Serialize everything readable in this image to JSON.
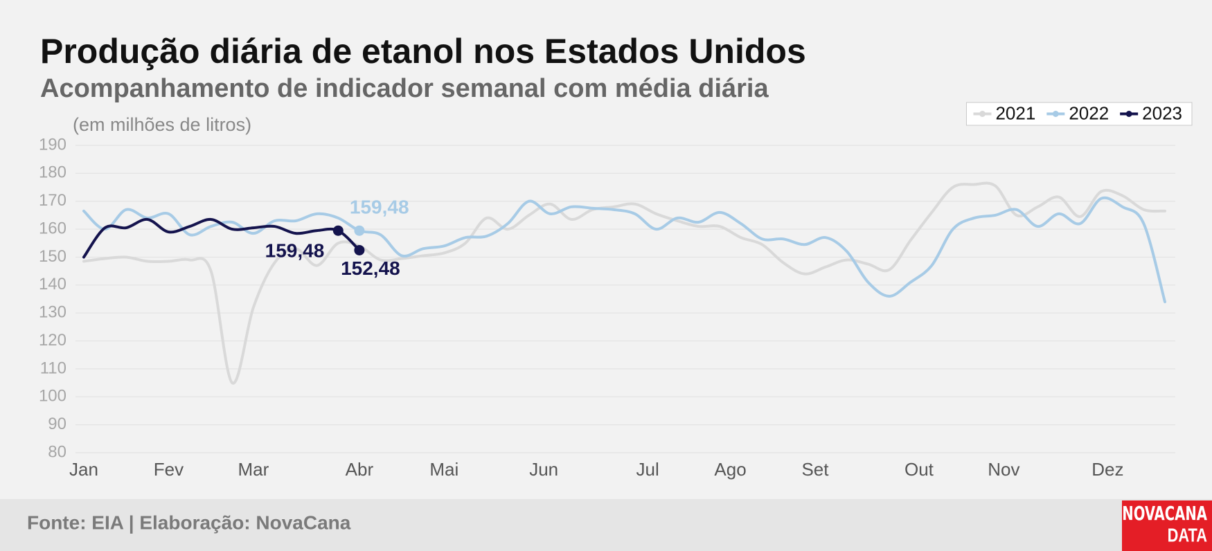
{
  "chart_data": {
    "type": "line",
    "title": "Produção diária de etanol nos Estados Unidos",
    "subtitle": "Acompanhamento de indicador semanal com média diária",
    "y_label": "(em milhões de litros)",
    "source": "Fonte: EIA | Elaboração: NovaCana",
    "logo": [
      "NOVACANA",
      "DATA"
    ],
    "x": [
      1,
      2,
      3,
      4,
      5,
      6,
      7,
      8,
      9,
      10,
      11,
      12,
      13,
      14,
      15,
      16,
      17,
      18,
      19,
      20,
      21,
      22,
      23,
      24,
      25,
      26,
      27,
      28,
      29,
      30,
      31,
      32,
      33,
      34,
      35,
      36,
      37,
      38,
      39,
      40,
      41,
      42,
      43,
      44,
      45,
      46,
      47,
      48,
      49,
      50,
      51,
      52
    ],
    "xlim": [
      1,
      52
    ],
    "xticks": [
      {
        "value": 1,
        "label": "Jan"
      },
      {
        "value": 5,
        "label": "Fev"
      },
      {
        "value": 9,
        "label": "Mar"
      },
      {
        "value": 14,
        "label": "Abr"
      },
      {
        "value": 18,
        "label": "Mai"
      },
      {
        "value": 22.7,
        "label": "Jun"
      },
      {
        "value": 27.6,
        "label": "Jul"
      },
      {
        "value": 31.5,
        "label": "Ago"
      },
      {
        "value": 35.5,
        "label": "Set"
      },
      {
        "value": 40.4,
        "label": "Out"
      },
      {
        "value": 44.4,
        "label": "Nov"
      },
      {
        "value": 49.3,
        "label": "Dez"
      }
    ],
    "ylim": [
      80,
      190
    ],
    "yticks": [
      80,
      90,
      100,
      110,
      120,
      130,
      140,
      150,
      160,
      170,
      180,
      190
    ],
    "grid": true,
    "legend": "top-right",
    "series": [
      {
        "name": "2021",
        "color": "#d9d9d9",
        "values": [
          148.5,
          149.5,
          150,
          148.5,
          148.5,
          149,
          145,
          105,
          132,
          148,
          153,
          147,
          155,
          154,
          149,
          149.5,
          150.5,
          151.5,
          155,
          164,
          160,
          165,
          169,
          163.5,
          167,
          168,
          169,
          165.5,
          163,
          161,
          161,
          157,
          154.5,
          148,
          144,
          146.5,
          149,
          147.5,
          145.5,
          156,
          166,
          175,
          176,
          175.5,
          165,
          168,
          171.5,
          164.5,
          173.5,
          172,
          167,
          166.5
        ]
      },
      {
        "name": "2022",
        "color": "#a7cbe6",
        "values": [
          166.5,
          160,
          167,
          164,
          165.5,
          158,
          161,
          162.5,
          158.5,
          163,
          163,
          165.5,
          164,
          159.48,
          158,
          150.5,
          153,
          154,
          157,
          157.5,
          162,
          170,
          165.5,
          168,
          167.5,
          167,
          165.5,
          160,
          164,
          162.5,
          166,
          162,
          156.5,
          156.5,
          154.5,
          157,
          152,
          141,
          136,
          141,
          147,
          160,
          164,
          165,
          167,
          161,
          165.5,
          162,
          171,
          168,
          162,
          134
        ],
        "value_labels": [
          null,
          null,
          null,
          null,
          null,
          null,
          null,
          null,
          null,
          null,
          null,
          null,
          null,
          "159,48",
          null,
          null,
          null,
          null,
          null,
          null,
          null,
          null,
          null,
          null,
          null,
          null,
          null,
          null,
          null,
          null,
          null,
          null,
          null,
          null,
          null,
          null,
          null,
          null,
          null,
          null,
          null,
          null,
          null,
          null,
          null,
          null,
          null,
          null,
          null,
          null,
          null,
          null
        ]
      },
      {
        "name": "2023",
        "color": "#14134d",
        "values": [
          150,
          160.5,
          160.5,
          163.5,
          159,
          161,
          163.5,
          160,
          160.5,
          161,
          158.5,
          159.5,
          159.48,
          152.48,
          null,
          null,
          null,
          null,
          null,
          null,
          null,
          null,
          null,
          null,
          null,
          null,
          null,
          null,
          null,
          null,
          null,
          null,
          null,
          null,
          null,
          null,
          null,
          null,
          null,
          null,
          null,
          null,
          null,
          null,
          null,
          null,
          null,
          null,
          null,
          null,
          null,
          null
        ],
        "value_labels": [
          null,
          null,
          null,
          null,
          null,
          null,
          null,
          null,
          null,
          null,
          null,
          null,
          "159,48",
          "152,48",
          null,
          null,
          null,
          null,
          null,
          null,
          null,
          null,
          null,
          null,
          null,
          null,
          null,
          null,
          null,
          null,
          null,
          null,
          null,
          null,
          null,
          null,
          null,
          null,
          null,
          null,
          null,
          null,
          null,
          null,
          null,
          null,
          null,
          null,
          null,
          null,
          null,
          null
        ]
      }
    ]
  }
}
